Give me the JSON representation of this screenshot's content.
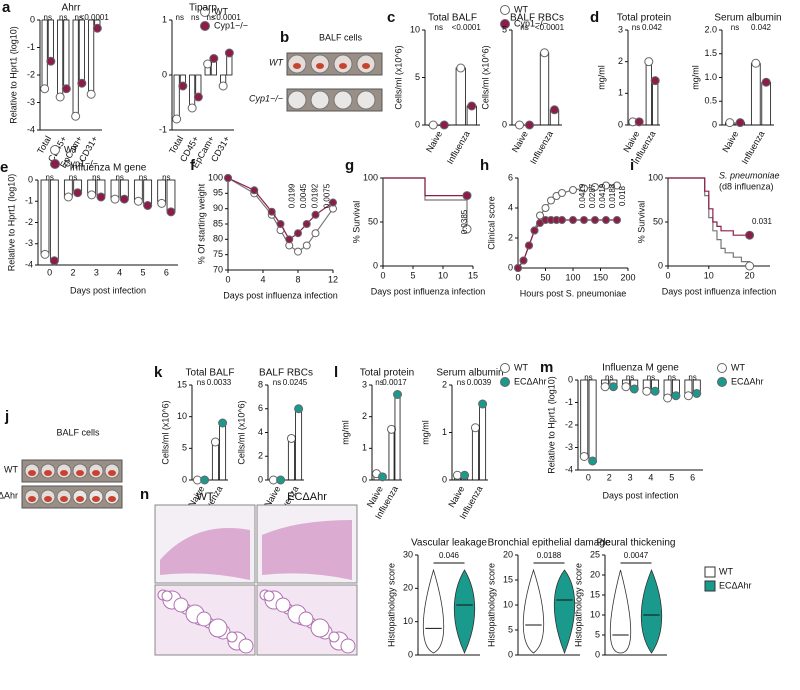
{
  "chart_data": [
    {
      "type": "dot",
      "panel": "a",
      "title": "Ahrr",
      "ylabel": "Relative to Hprt1 (log10)",
      "categories": [
        "Total",
        "CD45+",
        "EpCam+",
        "CD31+"
      ],
      "series": [
        {
          "name": "WT",
          "color": "#ffffff",
          "values": [
            -2.5,
            -2.8,
            -3.5,
            -2.7
          ]
        },
        {
          "name": "Cyp1−/−",
          "color": "#8c1d4a",
          "values": [
            -1.5,
            -2.5,
            -2.3,
            -0.3
          ]
        }
      ],
      "ylim": [
        -4,
        0
      ],
      "yticks": [
        0,
        -1,
        -2,
        -3,
        -4
      ],
      "annotations": [
        "ns",
        "ns",
        "ns",
        "<0.0001"
      ],
      "legend": true
    },
    {
      "type": "dot",
      "title": "Tiparp",
      "categories": [
        "Total",
        "CD45+",
        "EpCam+",
        "CD31+"
      ],
      "series": [
        {
          "name": "WT",
          "color": "#ffffff",
          "values": [
            -0.8,
            -0.6,
            0.2,
            -0.2
          ]
        },
        {
          "name": "Cyp1−/−",
          "color": "#8c1d4a",
          "values": [
            -0.2,
            -0.4,
            0.3,
            0.4
          ]
        }
      ],
      "ylim": [
        -1,
        1
      ],
      "yticks": [
        1,
        0,
        -1
      ],
      "annotations": [
        "ns",
        "ns",
        "ns",
        "<0.0001"
      ]
    },
    {
      "type": "dot",
      "panel": "c",
      "title": "Total BALF",
      "ylabel": "Cells/ml (x10^6)",
      "categories": [
        "Naive",
        "Influenza"
      ],
      "series": [
        {
          "name": "WT",
          "color": "#ffffff",
          "values": [
            0,
            6
          ]
        },
        {
          "name": "Cyp1−/−",
          "color": "#8c1d4a",
          "values": [
            0,
            2
          ]
        }
      ],
      "ylim": [
        0,
        10
      ],
      "yticks": [
        0,
        5,
        10
      ],
      "annotations": [
        "ns",
        "<0.0001"
      ],
      "legend": true
    },
    {
      "type": "dot",
      "title": "BALF RBCs",
      "ylabel": "Cells/ml (x10^6)",
      "categories": [
        "Naive",
        "Influenza"
      ],
      "series": [
        {
          "name": "WT",
          "color": "#ffffff",
          "values": [
            0,
            3.8
          ]
        },
        {
          "name": "Cyp1−/−",
          "color": "#8c1d4a",
          "values": [
            0,
            0.8
          ]
        }
      ],
      "ylim": [
        0,
        5
      ],
      "yticks": [
        0,
        5
      ],
      "annotations": [
        "ns",
        "<0.0001"
      ]
    },
    {
      "type": "dot",
      "panel": "d",
      "title": "Total protein",
      "ylabel": "mg/ml",
      "categories": [
        "Naive",
        "Influenza"
      ],
      "series": [
        {
          "name": "WT",
          "color": "#ffffff",
          "values": [
            0.1,
            2
          ]
        },
        {
          "name": "Cyp1−/−",
          "color": "#8c1d4a",
          "values": [
            0.1,
            1.4
          ]
        }
      ],
      "ylim": [
        0,
        3
      ],
      "yticks": [
        0,
        1,
        2,
        3
      ],
      "annotations": [
        "ns",
        "0.042"
      ]
    },
    {
      "type": "dot",
      "title": "Serum albumin",
      "ylabel": "mg/ml",
      "categories": [
        "Naive",
        "Influenza"
      ],
      "series": [
        {
          "name": "WT",
          "color": "#ffffff",
          "values": [
            0.05,
            1.3
          ]
        },
        {
          "name": "Cyp1−/−",
          "color": "#8c1d4a",
          "values": [
            0.05,
            0.9
          ]
        }
      ],
      "ylim": [
        0,
        2
      ],
      "yticks": [
        0,
        {
          "value": 0.5,
          "label": "0.5"
        },
        {
          "value": 1,
          "label": "1.0"
        },
        {
          "value": 1.5,
          "label": "1.5"
        },
        {
          "value": 2,
          "label": "2.0"
        }
      ],
      "annotations": [
        "ns",
        "0.042"
      ]
    },
    {
      "type": "dot",
      "panel": "e",
      "title": "Influenza M gene",
      "ylabel": "Relative to Hprt1 (log10)",
      "xlabel": "Days post infection",
      "categories": [
        0,
        2,
        3,
        4,
        5,
        6
      ],
      "series": [
        {
          "name": "WT",
          "color": "#ffffff",
          "values": [
            -3.5,
            -0.8,
            -0.7,
            -0.9,
            -1.0,
            -1.1
          ]
        },
        {
          "name": "Cyp1−/−",
          "color": "#8c1d4a",
          "values": [
            -3.8,
            -0.6,
            -0.8,
            -0.9,
            -1.2,
            -1.5
          ]
        }
      ],
      "ylim": [
        -4,
        0
      ],
      "yticks": [
        0,
        -1,
        -2,
        -3,
        -4
      ],
      "annotations": [
        "ns",
        "ns",
        "ns",
        "ns",
        "ns",
        "ns"
      ],
      "legend": true
    },
    {
      "type": "line",
      "panel": "f",
      "ylabel": "% Of starting weight",
      "xlabel": "Days post influenza infection",
      "x": [
        0,
        3,
        5,
        6,
        7,
        8,
        9,
        10,
        12
      ],
      "series": [
        {
          "name": "WT",
          "color": "#ffffff",
          "values": [
            100,
            95,
            88,
            83,
            78,
            76,
            78,
            82,
            90
          ]
        },
        {
          "name": "Cyp1−/−",
          "color": "#8c1d4a",
          "values": [
            100,
            96,
            89,
            85,
            80,
            82,
            85,
            88,
            92
          ]
        }
      ],
      "xlim": [
        0,
        12
      ],
      "xticks": [
        0,
        4,
        8,
        12
      ],
      "ylim": [
        70,
        100
      ],
      "yticks": [
        70,
        75,
        80,
        85,
        90,
        95,
        100
      ],
      "annotations": [
        "0.0199",
        "0.0045",
        "0.0192",
        "0.0075"
      ]
    },
    {
      "type": "step",
      "panel": "g",
      "ylabel": "% Survival",
      "xlabel": "Days post influenza infection",
      "x": [
        0,
        7,
        14
      ],
      "series": [
        {
          "name": "WT",
          "color": "#ffffff",
          "values": [
            100,
            75,
            42
          ]
        },
        {
          "name": "Cyp1−/−",
          "color": "#8c1d4a",
          "values": [
            100,
            80,
            80
          ]
        }
      ],
      "xlim": [
        0,
        15
      ],
      "xticks": [
        0,
        5,
        10,
        15
      ],
      "ylim": [
        0,
        100
      ],
      "yticks": [
        0,
        50,
        100
      ],
      "annotations": [
        "0.0385"
      ]
    },
    {
      "type": "line",
      "panel": "h",
      "ylabel": "Clinical score",
      "xlabel": "Hours post S. pneumoniae",
      "x": [
        0,
        10,
        20,
        30,
        40,
        50,
        60,
        70,
        80,
        100,
        120,
        140,
        160,
        180
      ],
      "series": [
        {
          "name": "WT",
          "color": "#ffffff",
          "values": [
            0,
            0.5,
            1.5,
            2.5,
            3.5,
            4,
            4.5,
            4.8,
            5,
            5.2,
            5.3,
            5.4,
            5.5,
            5.5
          ]
        },
        {
          "name": "Cyp1−/−",
          "color": "#8c1d4a",
          "values": [
            0,
            0.5,
            1.5,
            2.5,
            3,
            3.2,
            3.2,
            3.2,
            3.2,
            3.2,
            3.2,
            3.2,
            3.2,
            3.2
          ]
        }
      ],
      "xlim": [
        0,
        200
      ],
      "xticks": [
        0,
        50,
        100,
        150,
        200
      ],
      "ylim": [
        0,
        6
      ],
      "yticks": [
        0,
        2,
        4,
        6
      ],
      "annotations": [
        "0.0419",
        "0.0287",
        "0.0419",
        "0.0188",
        "0.018"
      ]
    },
    {
      "type": "step",
      "panel": "i",
      "ylabel": "% Survival",
      "xlabel": "Days post influenza infection",
      "x": [
        0,
        8,
        9,
        10,
        11,
        12,
        13,
        14,
        16,
        18,
        20
      ],
      "series": [
        {
          "name": "WT",
          "color": "#ffffff",
          "values": [
            100,
            100,
            80,
            55,
            40,
            30,
            20,
            15,
            10,
            5,
            0
          ]
        },
        {
          "name": "Cyp1−/−",
          "color": "#8c1d4a",
          "values": [
            100,
            100,
            85,
            65,
            50,
            45,
            40,
            40,
            35,
            35,
            35
          ]
        }
      ],
      "xlim": [
        0,
        25
      ],
      "xticks": [
        0,
        10,
        20
      ],
      "ylim": [
        0,
        100
      ],
      "yticks": [
        0,
        50,
        100
      ],
      "annotations": [
        "0.031"
      ],
      "notes": [
        "S. pneumoniae",
        "(d8 influenza)"
      ]
    },
    {
      "type": "dot",
      "panel": "k",
      "title": "Total BALF",
      "ylabel": "Cells/ml (x10^6)",
      "categories": [
        "Naive",
        "Influenza"
      ],
      "series": [
        {
          "name": "WT",
          "color": "#ffffff",
          "values": [
            0,
            6
          ]
        },
        {
          "name": "ECΔAhr",
          "color": "#1a9a8c",
          "values": [
            0,
            9
          ]
        }
      ],
      "ylim": [
        0,
        15
      ],
      "yticks": [
        0,
        5,
        10,
        15
      ],
      "annotations": [
        "ns",
        "0.0033"
      ]
    },
    {
      "type": "dot",
      "title": "BALF RBCs",
      "ylabel": "Cells/ml (x10^6)",
      "categories": [
        "Naive",
        "Influenza"
      ],
      "series": [
        {
          "name": "WT",
          "color": "#ffffff",
          "values": [
            0,
            3.5
          ]
        },
        {
          "name": "ECΔAhr",
          "color": "#1a9a8c",
          "values": [
            0,
            6
          ]
        }
      ],
      "ylim": [
        0,
        8
      ],
      "yticks": [
        0,
        2,
        4,
        6,
        8
      ],
      "annotations": [
        "ns",
        "0.0245"
      ]
    },
    {
      "type": "dot",
      "panel": "l",
      "title": "Total protein",
      "ylabel": "mg/ml",
      "categories": [
        "Naive",
        "Influenza"
      ],
      "series": [
        {
          "name": "WT",
          "color": "#ffffff",
          "values": [
            0.2,
            1.6
          ]
        },
        {
          "name": "ECΔAhr",
          "color": "#1a9a8c",
          "values": [
            0.1,
            2.7
          ]
        }
      ],
      "ylim": [
        0,
        3
      ],
      "yticks": [
        0,
        1,
        2,
        3
      ],
      "annotations": [
        "ns",
        "0.0017"
      ]
    },
    {
      "type": "dot",
      "title": "Serum albumin",
      "ylabel": "mg/ml",
      "categories": [
        "Naive",
        "Influenza"
      ],
      "series": [
        {
          "name": "WT",
          "color": "#ffffff",
          "values": [
            0.1,
            1.1
          ]
        },
        {
          "name": "ECΔAhr",
          "color": "#1a9a8c",
          "values": [
            0.1,
            1.6
          ]
        }
      ],
      "ylim": [
        0,
        2
      ],
      "yticks": [
        0,
        1,
        2
      ],
      "annotations": [
        "ns",
        "0.0039"
      ],
      "legend": true
    },
    {
      "type": "dot",
      "panel": "m",
      "title": "Influenza M gene",
      "ylabel": "Relative to Hprt1 (log10)",
      "xlabel": "Days post infection",
      "categories": [
        0,
        2,
        3,
        4,
        5,
        6
      ],
      "series": [
        {
          "name": "WT",
          "color": "#ffffff",
          "values": [
            -3.4,
            -0.3,
            -0.3,
            -0.5,
            -0.8,
            -0.7
          ]
        },
        {
          "name": "ECΔAhr",
          "color": "#1a9a8c",
          "values": [
            -3.6,
            -0.3,
            -0.4,
            -0.5,
            -0.7,
            -0.6
          ]
        }
      ],
      "ylim": [
        -4,
        0
      ],
      "yticks": [
        0,
        -1,
        -2,
        -3,
        -4
      ],
      "annotations": [
        "ns",
        "ns",
        "ns",
        "ns",
        "ns",
        "ns"
      ],
      "legend": true
    },
    {
      "type": "violin",
      "title": "Vascular leakage",
      "ylabel": "Histopathology score",
      "series": [
        {
          "name": "WT",
          "color": "#ffffff",
          "values": [
            8
          ]
        },
        {
          "name": "ECΔAhr",
          "color": "#1a9a8c",
          "values": [
            15
          ]
        }
      ],
      "ylim": [
        0,
        30
      ],
      "yticks": [
        0,
        10,
        20,
        30
      ],
      "annotations": [
        "0.046"
      ]
    },
    {
      "type": "violin",
      "title": "Bronchial epithelial damage",
      "ylabel": "Histopathology score",
      "series": [
        {
          "name": "WT",
          "color": "#ffffff",
          "values": [
            6
          ]
        },
        {
          "name": "ECΔAhr",
          "color": "#1a9a8c",
          "values": [
            11
          ]
        }
      ],
      "ylim": [
        0,
        20
      ],
      "yticks": [
        0,
        5,
        10,
        15,
        20
      ],
      "annotations": [
        "0.0188"
      ]
    },
    {
      "type": "violin",
      "title": "Pleural thickening",
      "ylabel": "Histopathology score",
      "series": [
        {
          "name": "WT",
          "color": "#ffffff",
          "values": [
            5
          ]
        },
        {
          "name": "ECΔAhr",
          "color": "#1a9a8c",
          "values": [
            10
          ]
        }
      ],
      "ylim": [
        0,
        25
      ],
      "yticks": [
        0,
        5,
        10,
        15,
        20,
        25
      ],
      "annotations": [
        "0.0047"
      ],
      "legend": true
    }
  ],
  "figure": {
    "images": [
      {
        "panel": "b",
        "title": "BALF cells",
        "rows": [
          "WT",
          "Cyp1−/−"
        ]
      },
      {
        "panel": "j",
        "title": "BALF cells",
        "rows": [
          "WT",
          "ECΔAhr"
        ]
      },
      {
        "panel": "n",
        "cols": [
          "WT",
          "ECΔAhr"
        ]
      }
    ]
  }
}
